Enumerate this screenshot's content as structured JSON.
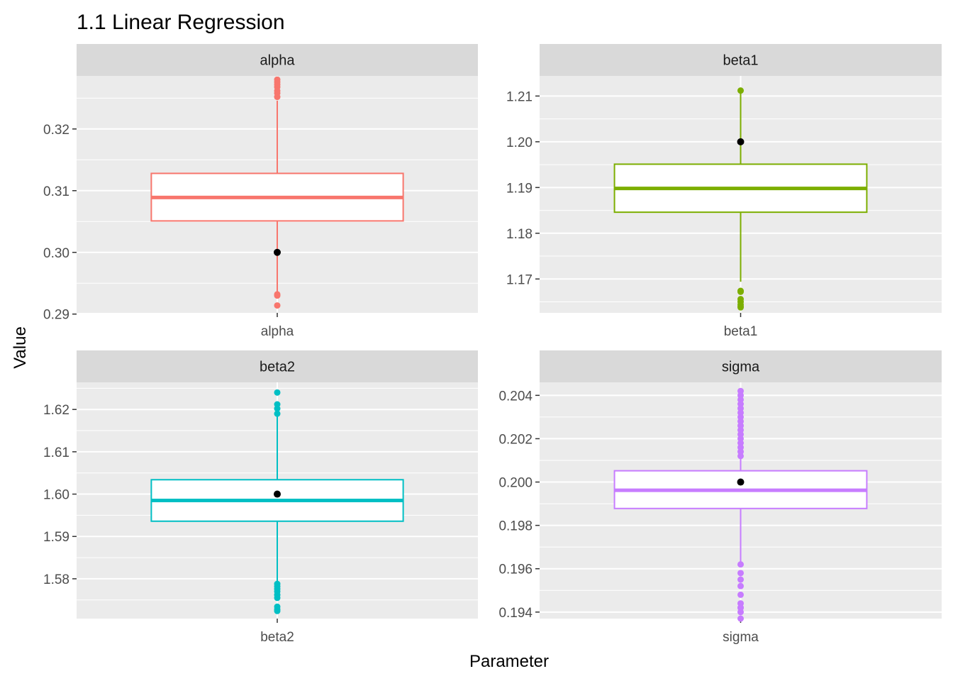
{
  "chart_data": {
    "type": "boxplot",
    "title": "1.1 Linear Regression",
    "xlabel": "Parameter",
    "ylabel": "Value",
    "grid": true,
    "legend": "none",
    "panels": [
      {
        "name": "alpha",
        "color": "#F8766D",
        "ylim": [
          0.2902,
          0.3286
        ],
        "ticks": [
          0.29,
          0.3,
          0.31,
          0.32
        ],
        "tick_labels": [
          "0.29",
          "0.30",
          "0.31",
          "0.32"
        ],
        "box": {
          "q1": 0.3051,
          "median": 0.3089,
          "q3": 0.3128,
          "whisker_low": 0.2934,
          "whisker_high": 0.3246
        },
        "outliers": [
          0.3252,
          0.3258,
          0.3262,
          0.3268,
          0.3272,
          0.3276,
          0.328,
          0.2932,
          0.293,
          0.2914
        ],
        "true_value": 0.3
      },
      {
        "name": "beta1",
        "color": "#7CAE00",
        "ylim": [
          1.1626,
          1.2144
        ],
        "ticks": [
          1.17,
          1.18,
          1.19,
          1.2,
          1.21
        ],
        "tick_labels": [
          "1.17",
          "1.18",
          "1.19",
          "1.20",
          "1.21"
        ],
        "box": {
          "q1": 1.1846,
          "median": 1.1898,
          "q3": 1.1951,
          "whisker_low": 1.1694,
          "whisker_high": 1.2112
        },
        "outliers": [
          1.2112,
          1.1674,
          1.1672,
          1.1656,
          1.165,
          1.1644,
          1.164,
          1.1638
        ],
        "true_value": 1.2
      },
      {
        "name": "beta2",
        "color": "#00BFC4",
        "ylim": [
          1.5706,
          1.6264
        ],
        "ticks": [
          1.58,
          1.59,
          1.6,
          1.61,
          1.62
        ],
        "tick_labels": [
          "1.58",
          "1.59",
          "1.60",
          "1.61",
          "1.62"
        ],
        "box": {
          "q1": 1.5936,
          "median": 1.5985,
          "q3": 1.6034,
          "whisker_low": 1.579,
          "whisker_high": 1.6185
        },
        "outliers": [
          1.624,
          1.6212,
          1.6202,
          1.619,
          1.5788,
          1.5782,
          1.5776,
          1.577,
          1.5762,
          1.5755,
          1.5734,
          1.5728,
          1.5724
        ],
        "true_value": 1.6
      },
      {
        "name": "sigma",
        "color": "#C77CFF",
        "ylim": [
          0.1937,
          0.2046
        ],
        "ticks": [
          0.194,
          0.196,
          0.198,
          0.2,
          0.202,
          0.204
        ],
        "tick_labels": [
          "0.194",
          "0.196",
          "0.198",
          "0.200",
          "0.202",
          "0.204"
        ],
        "box": {
          "q1": 0.19878,
          "median": 0.19962,
          "q3": 0.20052,
          "whisker_low": 0.19618,
          "whisker_high": 0.20308
        },
        "outliers": [
          0.2042,
          0.204,
          0.2038,
          0.2036,
          0.2034,
          0.2032,
          0.203,
          0.2028,
          0.2026,
          0.2024,
          0.2022,
          0.202,
          0.2018,
          0.2016,
          0.2014,
          0.2012,
          0.1962,
          0.1958,
          0.1955,
          0.1952,
          0.1948,
          0.1944,
          0.1942,
          0.194,
          0.1937,
          0.1942
        ],
        "true_value": 0.2
      }
    ]
  }
}
